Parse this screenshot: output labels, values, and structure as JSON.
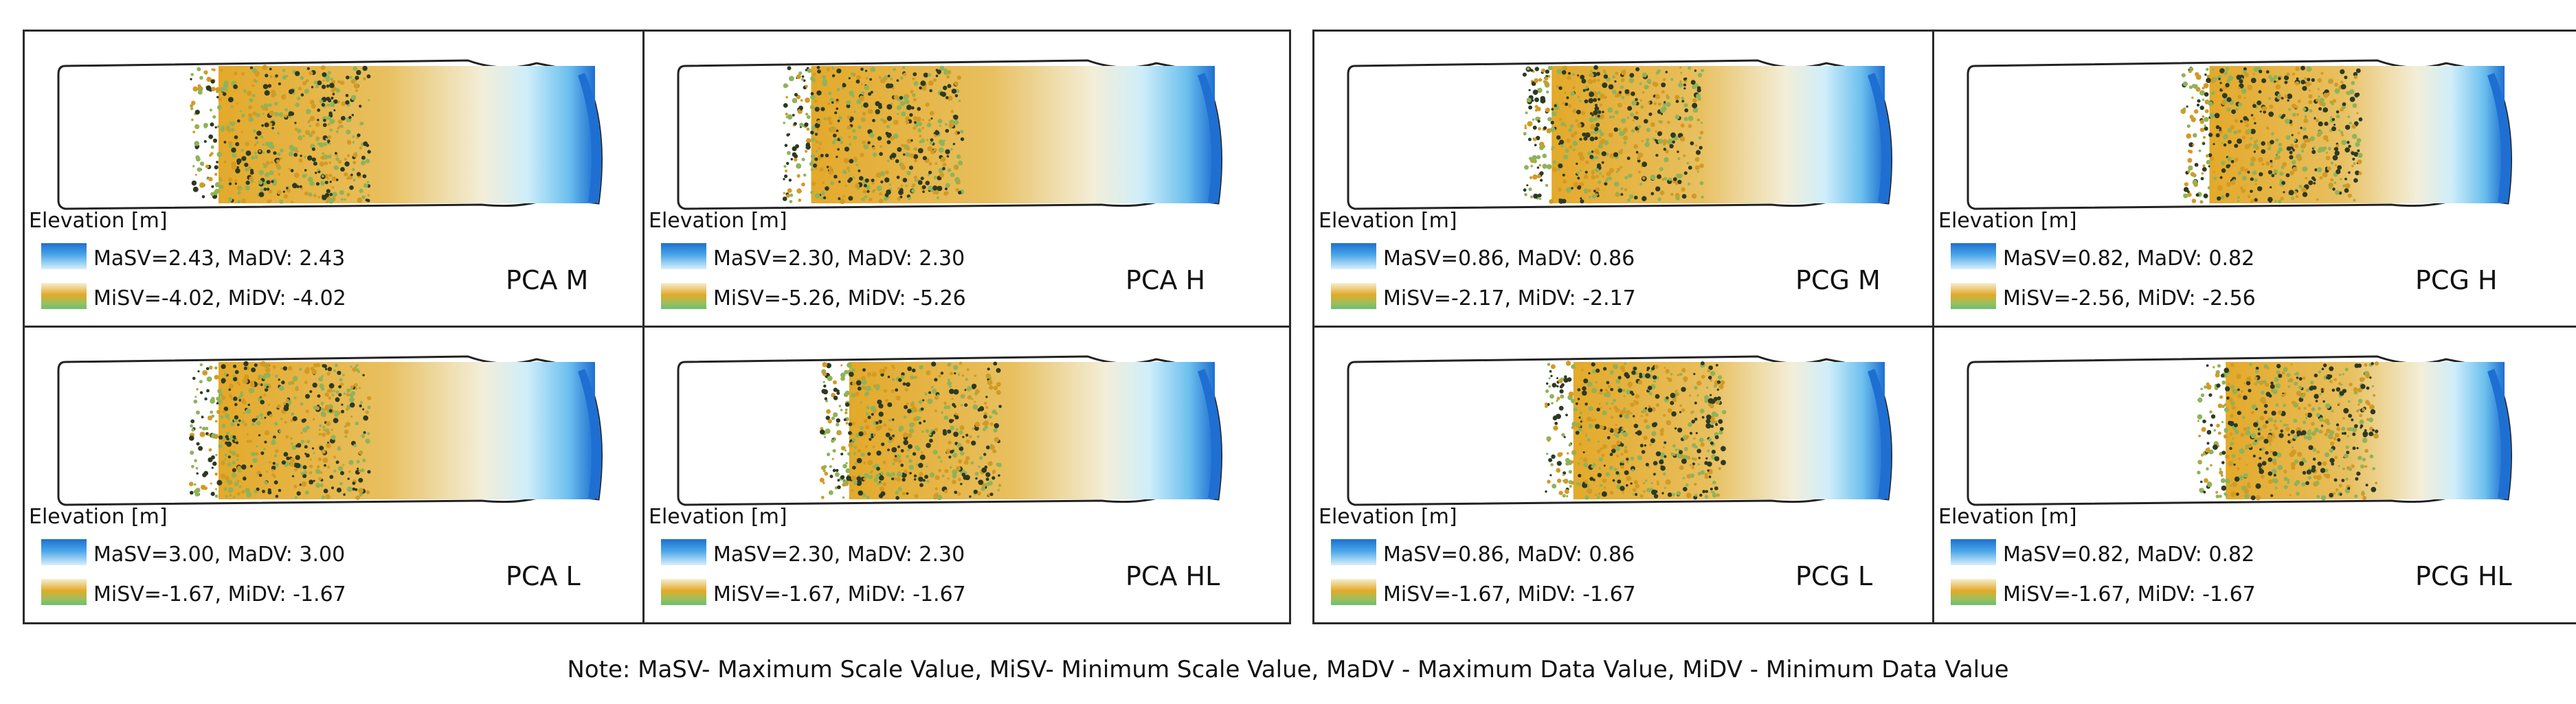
{
  "colors": {
    "border": "#2a2a2a",
    "blue_high": "#1e6fd1",
    "light": "#d9f0fb",
    "ochre": "#e3a92a",
    "green_low": "#6cbf76"
  },
  "panels": [
    {
      "name": "PCA M",
      "elevation_label": "Elevation [m]",
      "max_text": "MaSV=2.43, MaDV: 2.43",
      "min_text": "MiSV=-4.02, MiDV: -4.02",
      "coverage": 0.7
    },
    {
      "name": "PCA H",
      "elevation_label": "Elevation [m]",
      "max_text": "MaSV=2.30, MaDV: 2.30",
      "min_text": "MiSV=-5.26, MiDV: -5.26",
      "coverage": 0.75
    },
    {
      "name": "PCA L",
      "elevation_label": "Elevation [m]",
      "max_text": "MaSV=3.00, MaDV: 3.00",
      "min_text": "MiSV=-1.67, MiDV: -1.67",
      "coverage": 0.7
    },
    {
      "name": "PCA HL",
      "elevation_label": "Elevation [m]",
      "max_text": "MaSV=2.30, MaDV: 2.30",
      "min_text": "MiSV=-1.67, MiDV: -1.67",
      "coverage": 0.68
    },
    {
      "name": "PCG M",
      "elevation_label": "Elevation [m]",
      "max_text": "MaSV=0.86, MaDV: 0.86",
      "min_text": "MiSV=-2.17, MiDV: -2.17",
      "coverage": 0.62
    },
    {
      "name": "PCG H",
      "elevation_label": "Elevation [m]",
      "max_text": "MaSV=0.82, MaDV: 0.82",
      "min_text": "MiSV=-2.56, MiDV: -2.56",
      "coverage": 0.55
    },
    {
      "name": "PCG L",
      "elevation_label": "Elevation [m]",
      "max_text": "MaSV=0.86, MaDV: 0.86",
      "min_text": "MiSV=-1.67, MiDV: -1.67",
      "coverage": 0.58
    },
    {
      "name": "PCG HL",
      "elevation_label": "Elevation [m]",
      "max_text": "MaSV=0.82, MaDV: 0.82",
      "min_text": "MiSV=-1.67, MiDV: -1.67",
      "coverage": 0.52
    }
  ],
  "note": "Note: MaSV- Maximum Scale Value, MiSV- Minimum Scale Value, MaDV - Maximum Data Value, MiDV - Minimum Data Value"
}
